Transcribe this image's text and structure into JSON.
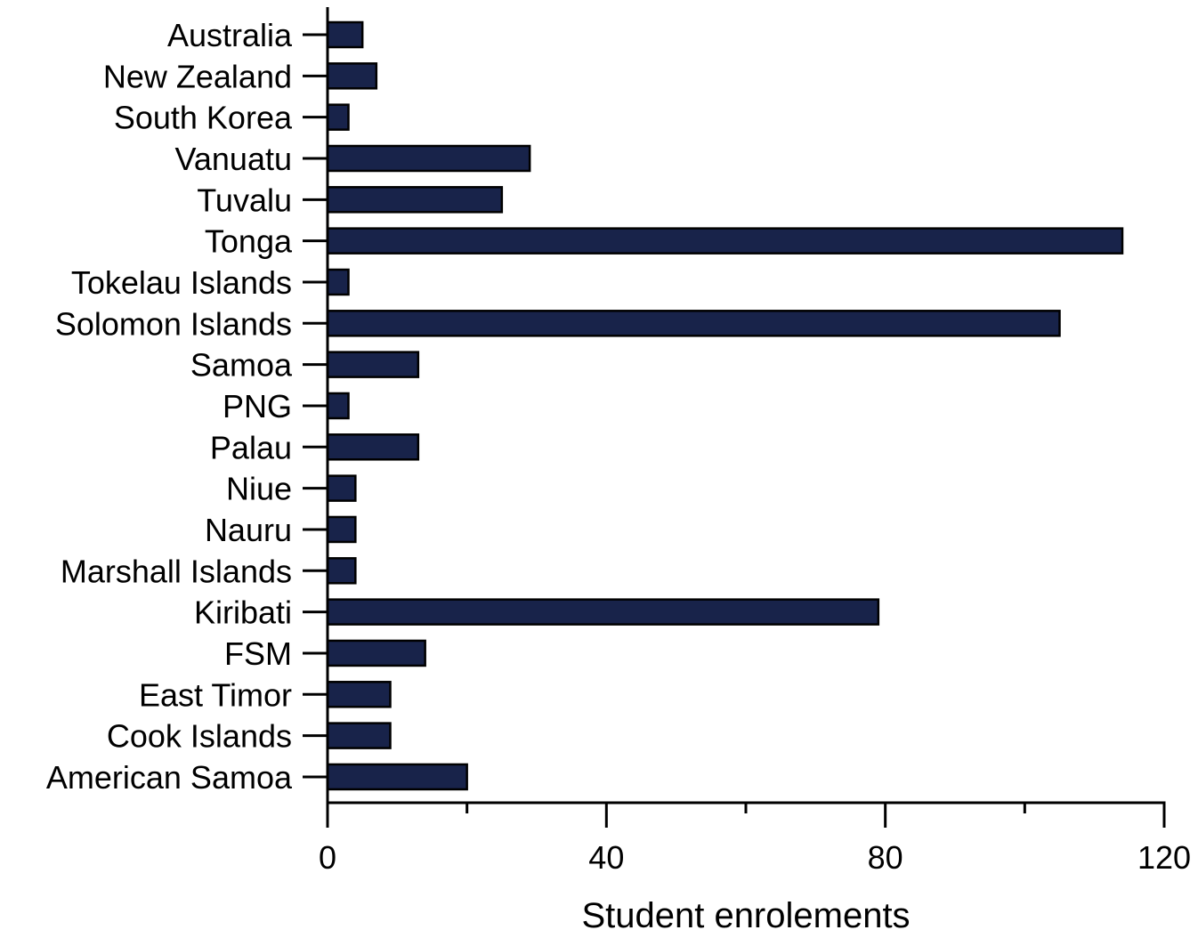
{
  "chart_data": {
    "type": "bar",
    "orientation": "horizontal",
    "categories": [
      "Australia",
      "New Zealand",
      "South Korea",
      "Vanuatu",
      "Tuvalu",
      "Tonga",
      "Tokelau Islands",
      "Solomon Islands",
      "Samoa",
      "PNG",
      "Palau",
      "Niue",
      "Nauru",
      "Marshall Islands",
      "Kiribati",
      "FSM",
      "East Timor",
      "Cook Islands",
      "American Samoa"
    ],
    "values": [
      5,
      7,
      3,
      29,
      25,
      114,
      3,
      105,
      13,
      3,
      13,
      4,
      4,
      4,
      79,
      14,
      9,
      9,
      20
    ],
    "xlabel": "Student enrolements",
    "ylabel": "",
    "xlim": [
      0,
      120
    ],
    "x_ticks": [
      "0",
      "40",
      "80",
      "120"
    ],
    "x_minor_ticks": [
      20,
      60,
      100
    ],
    "grid": false,
    "legend": "none",
    "colors": {
      "bar_fill": "#18234a",
      "bar_stroke": "#000000",
      "axis": "#000000"
    }
  }
}
